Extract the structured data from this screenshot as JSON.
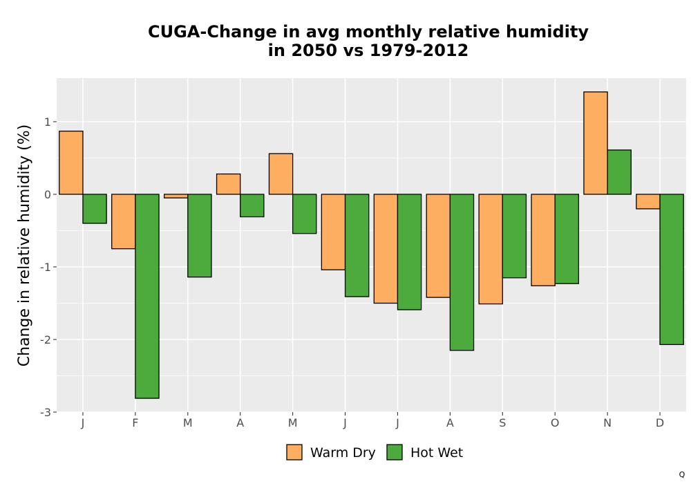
{
  "chart_data": {
    "type": "bar",
    "title_lines": [
      "CUGA-Change in avg monthly relative humidity",
      "in 2050 vs 1979-2012"
    ],
    "ylabel": "Change in relative humidity (%)",
    "xlabel": "",
    "categories": [
      "J",
      "F",
      "M",
      "A",
      "M",
      "J",
      "J",
      "A",
      "S",
      "O",
      "N",
      "D"
    ],
    "series": [
      {
        "name": "Warm Dry",
        "color": "#fdae61",
        "values": [
          0.87,
          -0.75,
          -0.05,
          0.28,
          0.56,
          -1.04,
          -1.5,
          -1.42,
          -1.51,
          -1.26,
          1.41,
          -0.2
        ]
      },
      {
        "name": "Hot Wet",
        "color": "#4daa3c",
        "values": [
          -0.4,
          -2.81,
          -1.14,
          -0.31,
          -0.54,
          -1.41,
          -1.59,
          -2.15,
          -1.15,
          -1.23,
          0.61,
          -2.07
        ]
      }
    ],
    "ylim": [
      -3,
      1.6
    ],
    "yticks": [
      1,
      0,
      -1,
      -2,
      -3
    ],
    "ytick_labels": [
      "1",
      "0",
      "-1",
      "-2",
      "-3"
    ],
    "grid": true,
    "legend_position": "bottom",
    "panel_color": "#ebebeb",
    "grid_color": "#ffffff",
    "bar_edge_color": "#000000"
  },
  "corner_mark": "Q"
}
